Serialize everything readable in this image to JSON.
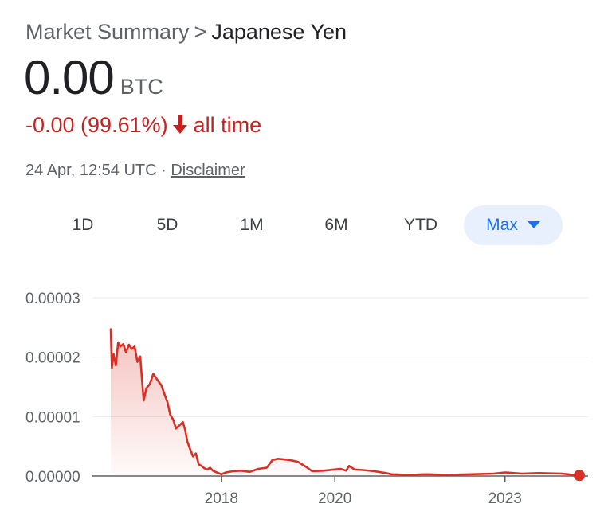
{
  "breadcrumb": {
    "parent": "Market Summary",
    "separator": ">",
    "current": "Japanese Yen"
  },
  "price": {
    "value": "0.00",
    "currency": "BTC"
  },
  "change": {
    "text": "-0.00 (99.61%)",
    "period": "all time",
    "direction": "down",
    "color": "#c5221f"
  },
  "meta": {
    "timestamp": "24 Apr, 12:54 UTC",
    "separator": "·",
    "disclaimer_label": "Disclaimer"
  },
  "tabs": [
    {
      "label": "1D",
      "active": false
    },
    {
      "label": "5D",
      "active": false
    },
    {
      "label": "1M",
      "active": false
    },
    {
      "label": "6M",
      "active": false
    },
    {
      "label": "YTD",
      "active": false
    },
    {
      "label": "Max",
      "active": true
    }
  ],
  "chart_data": {
    "type": "area",
    "title": "",
    "xlabel": "",
    "ylabel": "",
    "line_color": "#d93025",
    "x_ticks": [
      "2018",
      "2020",
      "2023"
    ],
    "x_tick_values": [
      2018.0,
      2020.0,
      2023.0
    ],
    "y_ticks": [
      "0.00003",
      "0.00002",
      "0.00001",
      "0.00000"
    ],
    "y_tick_values": [
      3e-05,
      2e-05,
      1e-05,
      0.0
    ],
    "xlim": [
      2016.05,
      2024.31
    ],
    "ylim": [
      0,
      3e-05
    ],
    "grid": true,
    "legend": "none",
    "series": [
      {
        "x": [
          2016.05,
          2016.07,
          2016.1,
          2016.14,
          2016.18,
          2016.22,
          2016.27,
          2016.32,
          2016.37,
          2016.42,
          2016.47,
          2016.52,
          2016.57,
          2016.6,
          2016.63,
          2016.68,
          2016.74,
          2016.8,
          2016.87,
          2016.94,
          2017.0,
          2017.05,
          2017.1,
          2017.15,
          2017.2,
          2017.26,
          2017.32,
          2017.36,
          2017.4,
          2017.45,
          2017.5,
          2017.55,
          2017.6,
          2017.65,
          2017.7,
          2017.75,
          2017.8,
          2017.85,
          2017.92,
          2018.0,
          2018.08,
          2018.2,
          2018.35,
          2018.5,
          2018.65,
          2018.8,
          2018.9,
          2019.0,
          2019.2,
          2019.35,
          2019.5,
          2019.6,
          2019.8,
          2020.0,
          2020.1,
          2020.2,
          2020.25,
          2020.35,
          2020.5,
          2020.7,
          2020.9,
          2021.0,
          2021.3,
          2021.6,
          2022.0,
          2022.4,
          2022.8,
          2023.0,
          2023.3,
          2023.6,
          2024.0,
          2024.31
        ],
        "y": [
          2.47e-05,
          1.82e-05,
          2.05e-05,
          1.86e-05,
          2.25e-05,
          2.18e-05,
          2.22e-05,
          2.08e-05,
          2.21e-05,
          2.14e-05,
          2.18e-05,
          1.92e-05,
          2.01e-05,
          1.63e-05,
          1.27e-05,
          1.48e-05,
          1.55e-05,
          1.72e-05,
          1.62e-05,
          1.53e-05,
          1.37e-05,
          1.24e-05,
          1.03e-05,
          9.5e-06,
          8e-06,
          8.5e-06,
          9.1e-06,
          7.8e-06,
          5.8e-06,
          4.5e-06,
          3.3e-06,
          3.8e-06,
          2e-06,
          1.7e-06,
          1.3e-06,
          1.1e-06,
          1.4e-06,
          9e-07,
          6e-07,
          3e-07,
          6e-07,
          8e-07,
          9e-07,
          7e-07,
          1.2e-06,
          1.4e-06,
          2.7e-06,
          2.9e-06,
          2.7e-06,
          2.4e-06,
          1.5e-06,
          8e-07,
          9e-07,
          1.1e-06,
          1.2e-06,
          9e-07,
          1.7e-06,
          1.1e-06,
          1e-06,
          8e-07,
          5e-07,
          3e-07,
          2e-07,
          3e-07,
          2e-07,
          3e-07,
          4e-07,
          6e-07,
          4e-07,
          5e-07,
          4e-07,
          1e-07
        ]
      }
    ],
    "end_point": {
      "x": 2024.31,
      "y": 1e-07
    }
  }
}
